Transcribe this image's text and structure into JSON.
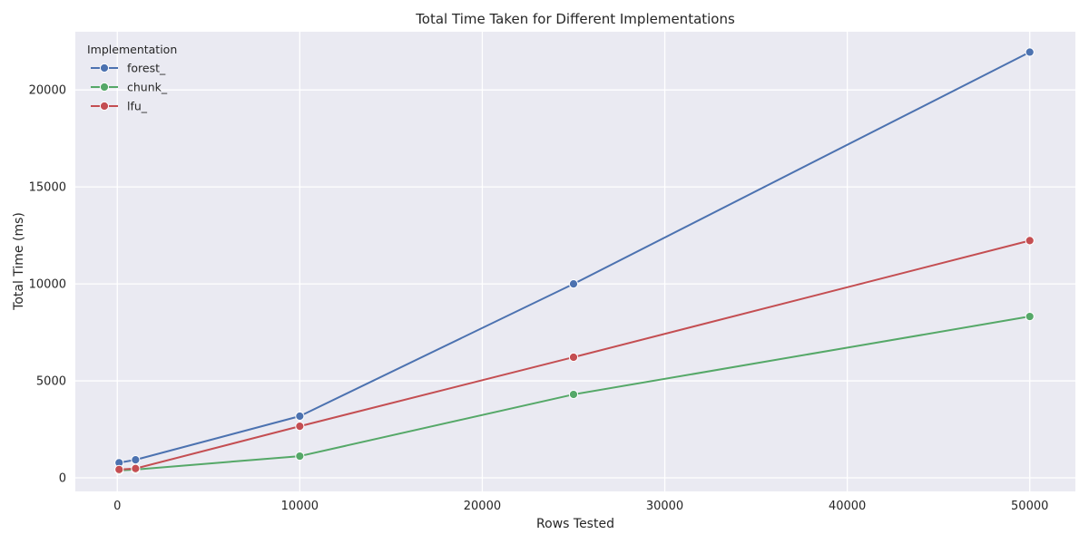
{
  "chart_data": {
    "type": "line",
    "title": "Total Time Taken for Different Implementations",
    "xlabel": "Rows Tested",
    "ylabel": "Total Time (ms)",
    "xlim": [
      -2300,
      52500
    ],
    "ylim": [
      -700,
      23000
    ],
    "xticks": [
      0,
      10000,
      20000,
      30000,
      40000,
      50000
    ],
    "yticks": [
      0,
      5000,
      10000,
      15000,
      20000
    ],
    "grid": true,
    "legend": {
      "title": "Implementation",
      "placement": "top-left"
    },
    "series": [
      {
        "name": "forest_",
        "color": "#4c72b0",
        "x": [
          100,
          1000,
          10000,
          25000,
          50000
        ],
        "y": [
          780,
          930,
          3180,
          10000,
          21950
        ]
      },
      {
        "name": "chunk_",
        "color": "#55a868",
        "x": [
          100,
          1000,
          10000,
          25000,
          50000
        ],
        "y": [
          380,
          430,
          1120,
          4300,
          8320
        ]
      },
      {
        "name": "lfu_",
        "color": "#c44e52",
        "x": [
          100,
          1000,
          10000,
          25000,
          50000
        ],
        "y": [
          430,
          480,
          2660,
          6220,
          12230
        ]
      }
    ]
  }
}
